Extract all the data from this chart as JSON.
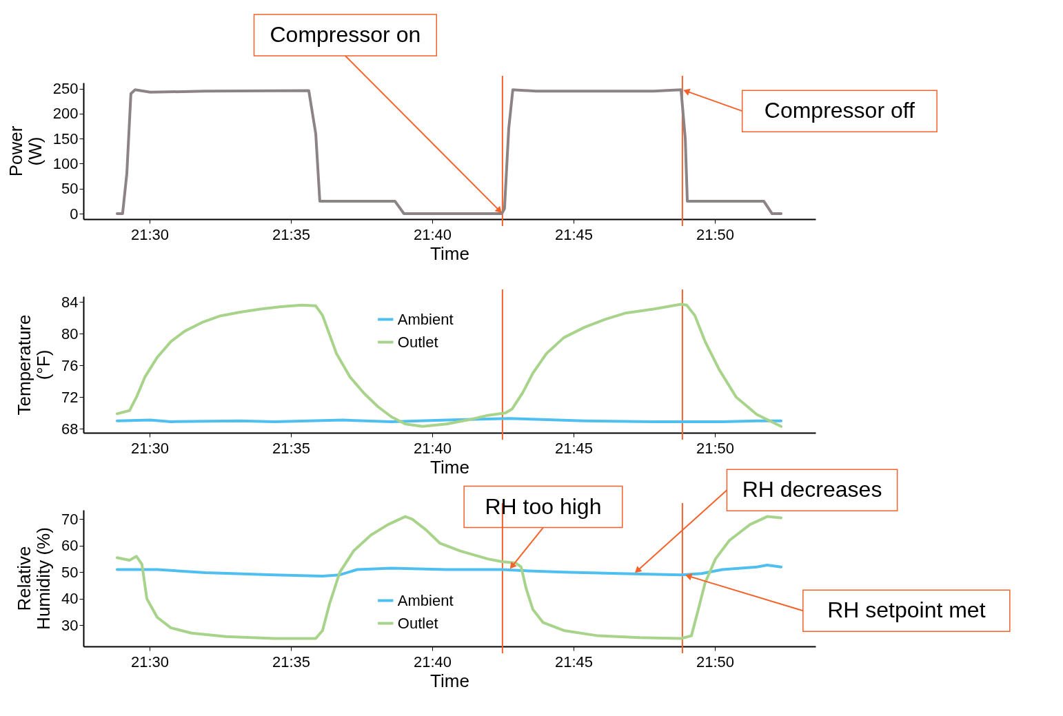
{
  "chart_data": [
    {
      "type": "line",
      "ylabel": "Power (W)",
      "xlabel": "Time",
      "xlim": [
        21.461,
        21.8927
      ],
      "ylim": [
        -11,
        262
      ],
      "yticks": [
        0,
        50,
        100,
        150,
        200,
        250
      ],
      "xticks": [
        {
          "value": 21.5,
          "label": "21:30"
        },
        {
          "value": 21.58333,
          "label": "21:35"
        },
        {
          "value": 21.66667,
          "label": "21:40"
        },
        {
          "value": 21.75,
          "label": "21:45"
        },
        {
          "value": 21.83333,
          "label": "21:50"
        }
      ],
      "grid": false,
      "series": [
        {
          "color": "#8c8385",
          "x": [
            21.4809,
            21.4841,
            21.4866,
            21.489,
            21.4915,
            21.5004,
            21.5329,
            21.5939,
            21.598,
            21.6004,
            21.6447,
            21.65,
            21.7077,
            21.7093,
            21.7118,
            21.7142,
            21.728,
            21.7972,
            21.8134,
            21.8159,
            21.8171,
            21.8622,
            21.8671,
            21.8724
          ],
          "values": [
            0,
            0,
            80,
            240,
            248,
            243,
            245,
            246,
            160,
            25,
            25,
            0,
            0,
            10,
            170,
            248,
            245,
            245,
            248,
            150,
            25,
            25,
            0,
            0
          ]
        }
      ],
      "ref_lines": [
        {
          "axis": "x",
          "value": 21.7081,
          "color": "#f4622a"
        },
        {
          "axis": "x",
          "value": 21.8142,
          "color": "#f4622a"
        }
      ],
      "annotations": [
        {
          "text": "Compressor on",
          "x": 21.7081,
          "y": 0
        },
        {
          "text": "Compressor off",
          "x": 21.8142,
          "y": 248
        }
      ]
    },
    {
      "type": "line",
      "ylabel": "Temperature (°F)",
      "xlabel": "Time",
      "xlim": [
        21.461,
        21.8927
      ],
      "ylim": [
        67.5,
        84.7
      ],
      "yticks": [
        68,
        72,
        76,
        80,
        84
      ],
      "xticks": [
        {
          "value": 21.5,
          "label": "21:30"
        },
        {
          "value": 21.58333,
          "label": "21:35"
        },
        {
          "value": 21.66667,
          "label": "21:40"
        },
        {
          "value": 21.75,
          "label": "21:45"
        },
        {
          "value": 21.83333,
          "label": "21:50"
        }
      ],
      "grid": false,
      "legend": "top",
      "series": [
        {
          "name": "Ambient",
          "color": "#4fbfef",
          "x": [
            21.4809,
            21.5004,
            21.5126,
            21.5533,
            21.5736,
            21.6142,
            21.6427,
            21.6752,
            21.7118,
            21.728,
            21.7565,
            21.7972,
            21.8378,
            21.8581,
            21.8724
          ],
          "values": [
            69.0,
            69.1,
            68.9,
            69.0,
            68.9,
            69.1,
            68.9,
            69.1,
            69.3,
            69.2,
            69.0,
            68.9,
            68.9,
            69.0,
            69.0
          ]
        },
        {
          "name": "Outlet",
          "color": "#a8d38a",
          "x": [
            21.4809,
            21.4882,
            21.4923,
            21.4972,
            21.5045,
            21.5126,
            21.5207,
            21.5309,
            21.5411,
            21.5533,
            21.5654,
            21.5776,
            21.5898,
            21.598,
            21.602,
            21.6102,
            21.6183,
            21.6264,
            21.6346,
            21.6427,
            21.6508,
            21.661,
            21.6752,
            21.6874,
            21.6996,
            21.7098,
            21.7138,
            21.7199,
            21.726,
            21.7341,
            21.7443,
            21.7565,
            21.7687,
            21.7809,
            21.7972,
            21.8134,
            21.8167,
            21.8215,
            21.8276,
            21.8358,
            21.8459,
            21.8581,
            21.8724
          ],
          "values": [
            69.9,
            70.3,
            72,
            74.5,
            77,
            79,
            80.3,
            81.4,
            82.2,
            82.7,
            83.1,
            83.4,
            83.6,
            83.5,
            82.3,
            77.5,
            74.5,
            72.5,
            70.8,
            69.5,
            68.6,
            68.3,
            68.6,
            69.1,
            69.7,
            70.0,
            70.5,
            72.5,
            75,
            77.5,
            79.5,
            80.8,
            81.8,
            82.6,
            83.1,
            83.7,
            83.6,
            82.3,
            79,
            75.5,
            72,
            69.8,
            68.3
          ]
        }
      ],
      "ref_lines": [
        {
          "axis": "x",
          "value": 21.7081,
          "color": "#f4622a"
        },
        {
          "axis": "x",
          "value": 21.8142,
          "color": "#f4622a"
        }
      ]
    },
    {
      "type": "line",
      "ylabel": "Relative Humidity (%)",
      "xlabel": "Time",
      "xlim": [
        21.461,
        21.8927
      ],
      "ylim": [
        22,
        73.5
      ],
      "yticks": [
        30,
        40,
        50,
        60,
        70
      ],
      "xticks": [
        {
          "value": 21.5,
          "label": "21:30"
        },
        {
          "value": 21.58333,
          "label": "21:35"
        },
        {
          "value": 21.66667,
          "label": "21:40"
        },
        {
          "value": 21.75,
          "label": "21:45"
        },
        {
          "value": 21.83333,
          "label": "21:50"
        }
      ],
      "grid": false,
      "legend": "bottom",
      "series": [
        {
          "name": "Ambient",
          "color": "#4fbfef",
          "x": [
            21.4809,
            21.5045,
            21.5329,
            21.5736,
            21.602,
            21.6122,
            21.6224,
            21.6427,
            21.6752,
            21.7077,
            21.724,
            21.7443,
            21.7768,
            21.8134,
            21.8256,
            21.8378,
            21.8581,
            21.8642,
            21.8724
          ],
          "values": [
            51,
            51,
            49.8,
            49,
            48.5,
            49,
            51,
            51.5,
            51,
            51,
            50.5,
            50,
            49.5,
            49,
            49.5,
            51,
            52,
            52.7,
            52
          ]
        },
        {
          "name": "Outlet",
          "color": "#a8d38a",
          "x": [
            21.4809,
            21.4882,
            21.4923,
            21.4955,
            21.4984,
            21.5045,
            21.5126,
            21.5248,
            21.5451,
            21.5736,
            21.598,
            21.602,
            21.6061,
            21.6122,
            21.6203,
            21.6305,
            21.6407,
            21.6508,
            21.6549,
            21.663,
            21.6711,
            21.6833,
            21.6996,
            21.7077,
            21.7159,
            21.7191,
            21.722,
            21.726,
            21.7321,
            21.7443,
            21.7646,
            21.789,
            21.8134,
            21.8195,
            21.8236,
            21.8276,
            21.8337,
            21.8419,
            21.8541,
            21.8642,
            21.8724
          ],
          "values": [
            55.5,
            54.5,
            56,
            53,
            40,
            33,
            29,
            27,
            25.7,
            25,
            25,
            28,
            38,
            50,
            58,
            64,
            68,
            71,
            70,
            66,
            61,
            58,
            55,
            54,
            53.5,
            52,
            44,
            36,
            31,
            28,
            26,
            25.3,
            25,
            26,
            36,
            46,
            55,
            62,
            68,
            71,
            70.5
          ]
        }
      ],
      "ref_lines": [
        {
          "axis": "x",
          "value": 21.7081,
          "color": "#f4622a"
        },
        {
          "axis": "x",
          "value": 21.8142,
          "color": "#f4622a"
        }
      ],
      "annotations": [
        {
          "text": "RH too high",
          "x": 21.7122,
          "y": 51
        },
        {
          "text": "RH decreases",
          "x": 21.7858,
          "y": 49.5
        },
        {
          "text": "RH setpoint met",
          "x": 21.8154,
          "y": 49
        }
      ]
    }
  ]
}
